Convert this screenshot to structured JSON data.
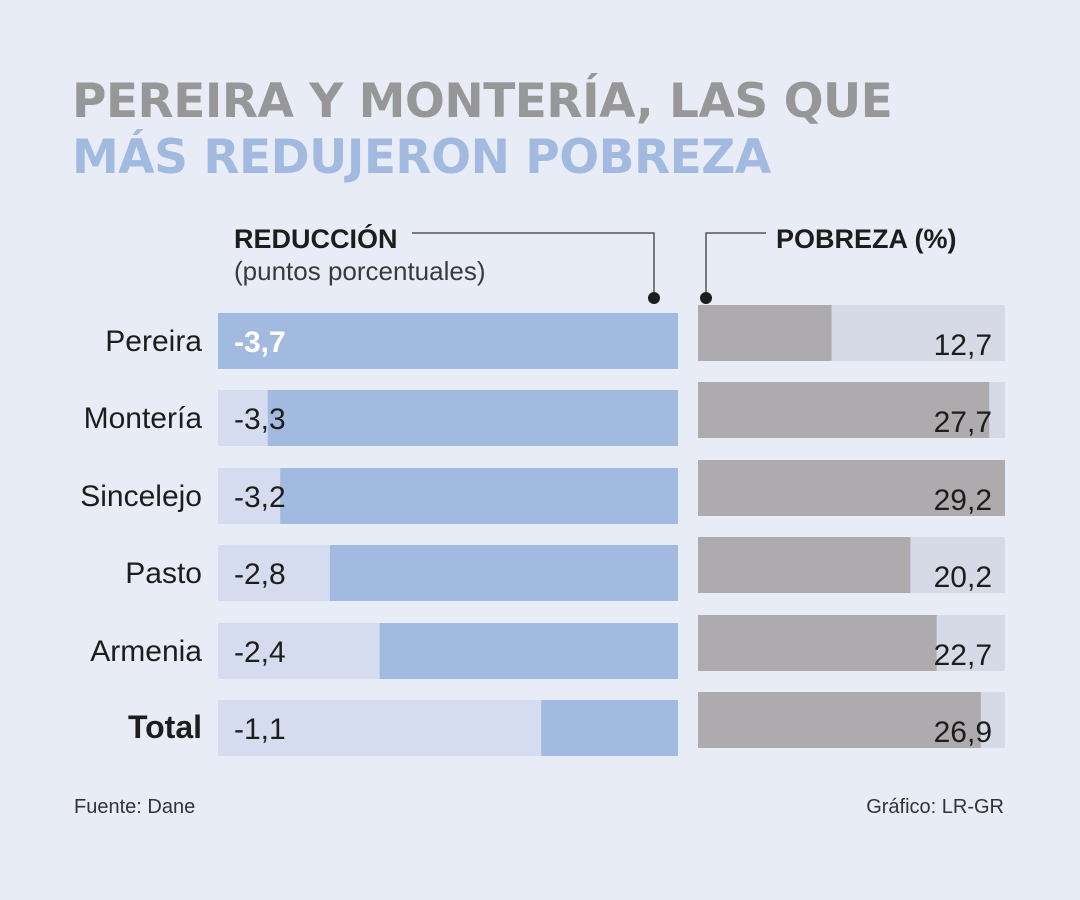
{
  "title": {
    "line1": "PEREIRA Y MONTERÍA, LAS QUE",
    "line2": "MÁS REDUJERON POBREZA"
  },
  "footer": {
    "source": "Fuente: Dane",
    "credit": "Gráfico: LR-GR"
  },
  "colors": {
    "background": "#e8ecf7",
    "reduction_bar": "#a2badf",
    "reduction_track": "#d6dcef",
    "poverty_bar": "#adabad",
    "poverty_track": "#d6dae6",
    "title_gray": "#979797",
    "title_blue": "#a2badf"
  },
  "chart_data": {
    "type": "bar",
    "categories": [
      "Pereira",
      "Montería",
      "Sincelejo",
      "Pasto",
      "Armenia",
      "Total"
    ],
    "series": [
      {
        "name": "REDUCCIÓN",
        "unit": "(puntos porcentuales)",
        "values": [
          -3.7,
          -3.3,
          -3.2,
          -2.8,
          -2.4,
          -1.1
        ],
        "labels": [
          "-3,7",
          "-3,3",
          "-3,2",
          "-2,8",
          "-2,4",
          "-1,1"
        ],
        "range": [
          0,
          -3.7
        ]
      },
      {
        "name": "POBREZA (%)",
        "values": [
          12.7,
          27.7,
          29.2,
          20.2,
          22.7,
          26.9
        ],
        "labels": [
          "12,7",
          "27,7",
          "29,2",
          "20,2",
          "22,7",
          "26,9"
        ],
        "range": [
          0,
          29.2
        ]
      }
    ]
  }
}
